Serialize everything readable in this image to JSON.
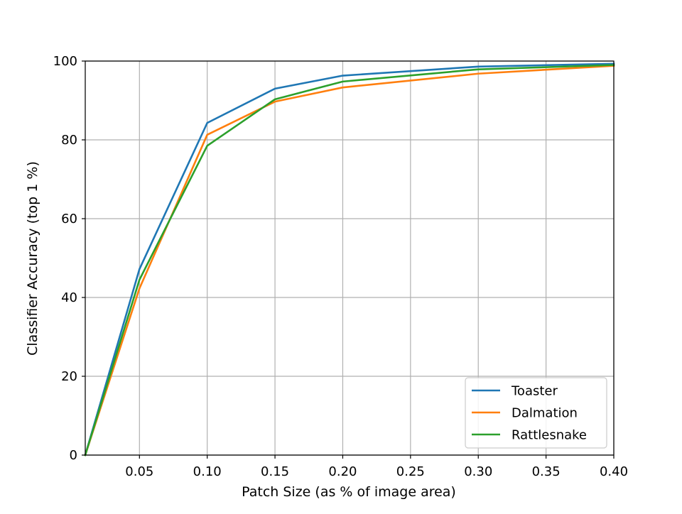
{
  "chart_data": {
    "type": "line",
    "title": "",
    "xlabel": "Patch Size (as % of image area)",
    "ylabel": "Classifier Accuracy (top 1 %)",
    "xlim": [
      0.01,
      0.4
    ],
    "ylim": [
      0,
      100
    ],
    "grid": true,
    "legend_position": "lower-right",
    "x": [
      0.01,
      0.05,
      0.1,
      0.15,
      0.2,
      0.3,
      0.4
    ],
    "xticks": [
      "0.05",
      "0.10",
      "0.15",
      "0.20",
      "0.25",
      "0.30",
      "0.35",
      "0.40"
    ],
    "xtick_values": [
      0.05,
      0.1,
      0.15,
      0.2,
      0.25,
      0.3,
      0.35,
      0.4
    ],
    "yticks": [
      "0",
      "20",
      "40",
      "60",
      "80",
      "100"
    ],
    "ytick_values": [
      0,
      20,
      40,
      60,
      80,
      100
    ],
    "series": [
      {
        "name": "Toaster",
        "color": "#1f77b4",
        "values": [
          0,
          47.2,
          84.3,
          93.0,
          96.3,
          98.6,
          99.3
        ]
      },
      {
        "name": "Dalmation",
        "color": "#ff7f0e",
        "values": [
          0,
          42.3,
          81.3,
          89.7,
          93.3,
          96.8,
          98.8
        ]
      },
      {
        "name": "Rattlesnake",
        "color": "#2ca02c",
        "values": [
          0,
          44.5,
          78.5,
          90.3,
          94.8,
          97.9,
          99.0
        ]
      }
    ]
  }
}
